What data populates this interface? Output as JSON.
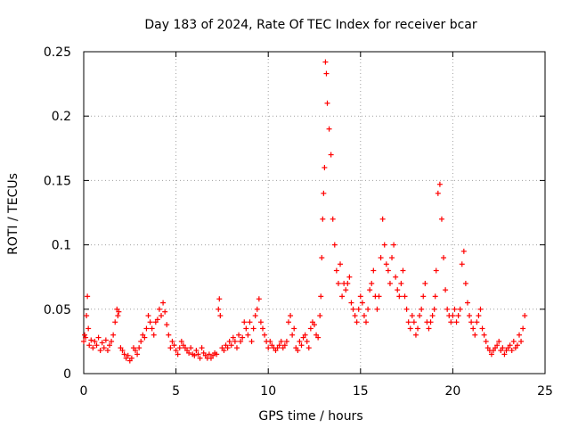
{
  "chart_data": {
    "type": "scatter",
    "title": "Day 183 of 2024, Rate Of TEC Index for receiver bcar",
    "xlabel": "GPS time / hours",
    "ylabel": "ROTI / TECUs",
    "xlim": [
      0,
      25
    ],
    "ylim": [
      0,
      0.25
    ],
    "x_ticks": [
      "0",
      "5",
      "10",
      "15",
      "20",
      "25"
    ],
    "y_ticks": [
      "0",
      "0.05",
      "0.1",
      "0.15",
      "0.2",
      "0.25"
    ],
    "grid": true,
    "marker": "+",
    "color": "#ff0000",
    "series": [
      {
        "x": [
          0.0,
          0.05,
          0.1,
          0.15,
          0.2,
          0.25,
          0.3,
          0.4,
          0.5,
          0.6,
          0.7,
          0.8,
          0.9,
          1.0,
          1.1,
          1.2,
          1.3,
          1.4,
          1.5,
          1.6,
          1.7,
          1.8,
          1.85,
          1.9,
          2.0,
          2.1,
          2.2,
          2.3,
          2.4,
          2.5,
          2.6,
          2.7,
          2.8,
          2.9,
          3.0,
          3.1,
          3.2,
          3.3,
          3.4,
          3.5,
          3.6,
          3.7,
          3.8,
          3.9,
          4.0,
          4.1,
          4.2,
          4.3,
          4.4,
          4.5,
          4.6,
          4.7,
          4.8,
          4.9,
          5.0,
          5.1,
          5.2,
          5.3,
          5.4,
          5.5,
          5.6,
          5.7,
          5.8,
          5.9,
          6.0,
          6.1,
          6.2,
          6.3,
          6.4,
          6.5,
          6.6,
          6.7,
          6.8,
          6.9,
          7.0,
          7.1,
          7.2,
          7.3,
          7.35,
          7.4,
          7.5,
          7.6,
          7.7,
          7.8,
          7.9,
          8.0,
          8.1,
          8.2,
          8.3,
          8.4,
          8.5,
          8.6,
          8.7,
          8.8,
          8.9,
          9.0,
          9.1,
          9.2,
          9.3,
          9.4,
          9.5,
          9.6,
          9.7,
          9.8,
          9.9,
          10.0,
          10.1,
          10.2,
          10.3,
          10.4,
          10.5,
          10.6,
          10.7,
          10.8,
          10.9,
          11.0,
          11.1,
          11.2,
          11.3,
          11.4,
          11.5,
          11.6,
          11.7,
          11.8,
          11.9,
          12.0,
          12.1,
          12.2,
          12.3,
          12.4,
          12.5,
          12.6,
          12.7,
          12.8,
          12.85,
          12.9,
          12.95,
          13.0,
          13.05,
          13.1,
          13.15,
          13.2,
          13.3,
          13.4,
          13.5,
          13.6,
          13.7,
          13.8,
          13.9,
          14.0,
          14.1,
          14.2,
          14.3,
          14.4,
          14.5,
          14.6,
          14.7,
          14.8,
          14.9,
          15.0,
          15.1,
          15.2,
          15.3,
          15.4,
          15.5,
          15.6,
          15.7,
          15.8,
          15.9,
          16.0,
          16.1,
          16.2,
          16.3,
          16.4,
          16.5,
          16.6,
          16.7,
          16.8,
          16.9,
          17.0,
          17.1,
          17.2,
          17.3,
          17.4,
          17.5,
          17.6,
          17.7,
          17.8,
          17.9,
          18.0,
          18.1,
          18.2,
          18.3,
          18.4,
          18.5,
          18.6,
          18.7,
          18.8,
          18.9,
          19.0,
          19.05,
          19.1,
          19.2,
          19.3,
          19.4,
          19.5,
          19.6,
          19.7,
          19.8,
          19.9,
          20.0,
          20.1,
          20.2,
          20.3,
          20.4,
          20.5,
          20.6,
          20.7,
          20.8,
          20.9,
          21.0,
          21.1,
          21.2,
          21.3,
          21.4,
          21.5,
          21.6,
          21.7,
          21.8,
          21.9,
          22.0,
          22.1,
          22.2,
          22.3,
          22.4,
          22.5,
          22.6,
          22.7,
          22.8,
          22.9,
          23.0,
          23.1,
          23.2,
          23.3,
          23.4,
          23.5,
          23.6,
          23.7,
          23.8,
          23.9
        ],
        "y": [
          0.025,
          0.03,
          0.028,
          0.045,
          0.06,
          0.035,
          0.022,
          0.026,
          0.02,
          0.025,
          0.022,
          0.028,
          0.018,
          0.024,
          0.02,
          0.026,
          0.018,
          0.022,
          0.025,
          0.03,
          0.04,
          0.05,
          0.045,
          0.048,
          0.02,
          0.018,
          0.015,
          0.012,
          0.014,
          0.01,
          0.012,
          0.02,
          0.018,
          0.015,
          0.02,
          0.025,
          0.03,
          0.028,
          0.035,
          0.045,
          0.04,
          0.035,
          0.03,
          0.04,
          0.042,
          0.05,
          0.045,
          0.055,
          0.048,
          0.038,
          0.03,
          0.02,
          0.025,
          0.022,
          0.018,
          0.015,
          0.02,
          0.025,
          0.022,
          0.02,
          0.018,
          0.016,
          0.02,
          0.015,
          0.014,
          0.018,
          0.015,
          0.012,
          0.02,
          0.016,
          0.014,
          0.012,
          0.015,
          0.012,
          0.014,
          0.016,
          0.015,
          0.05,
          0.058,
          0.045,
          0.02,
          0.018,
          0.022,
          0.02,
          0.025,
          0.022,
          0.028,
          0.025,
          0.02,
          0.03,
          0.025,
          0.028,
          0.04,
          0.035,
          0.03,
          0.04,
          0.025,
          0.035,
          0.045,
          0.05,
          0.058,
          0.04,
          0.035,
          0.03,
          0.025,
          0.02,
          0.025,
          0.022,
          0.02,
          0.018,
          0.02,
          0.022,
          0.025,
          0.02,
          0.022,
          0.025,
          0.04,
          0.045,
          0.03,
          0.035,
          0.02,
          0.018,
          0.025,
          0.022,
          0.028,
          0.03,
          0.025,
          0.02,
          0.035,
          0.04,
          0.038,
          0.03,
          0.028,
          0.045,
          0.06,
          0.09,
          0.12,
          0.14,
          0.16,
          0.242,
          0.233,
          0.21,
          0.19,
          0.17,
          0.12,
          0.1,
          0.08,
          0.07,
          0.085,
          0.06,
          0.07,
          0.065,
          0.07,
          0.075,
          0.055,
          0.05,
          0.045,
          0.04,
          0.05,
          0.06,
          0.055,
          0.045,
          0.04,
          0.05,
          0.065,
          0.07,
          0.08,
          0.06,
          0.05,
          0.06,
          0.09,
          0.12,
          0.1,
          0.085,
          0.08,
          0.07,
          0.09,
          0.1,
          0.075,
          0.065,
          0.06,
          0.07,
          0.08,
          0.06,
          0.05,
          0.04,
          0.035,
          0.045,
          0.04,
          0.03,
          0.035,
          0.045,
          0.05,
          0.06,
          0.07,
          0.04,
          0.035,
          0.04,
          0.045,
          0.05,
          0.06,
          0.08,
          0.14,
          0.147,
          0.12,
          0.09,
          0.065,
          0.05,
          0.045,
          0.04,
          0.045,
          0.05,
          0.04,
          0.045,
          0.05,
          0.085,
          0.095,
          0.07,
          0.055,
          0.045,
          0.04,
          0.035,
          0.03,
          0.04,
          0.045,
          0.05,
          0.035,
          0.03,
          0.025,
          0.02,
          0.018,
          0.015,
          0.018,
          0.02,
          0.022,
          0.025,
          0.018,
          0.02,
          0.015,
          0.018,
          0.02,
          0.022,
          0.018,
          0.025,
          0.02,
          0.022,
          0.03,
          0.025,
          0.035,
          0.045
        ]
      }
    ]
  }
}
